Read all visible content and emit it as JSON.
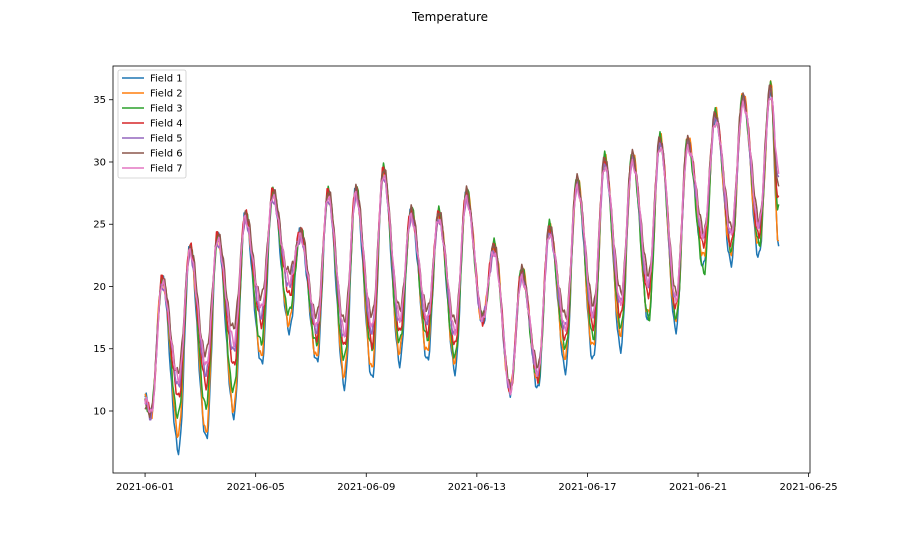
{
  "chart_data": {
    "type": "line",
    "title": "Temperature",
    "xlabel": "",
    "ylabel": "",
    "x_start": "2021-06-01 00:00",
    "x_end_days": 22.9,
    "xlim_days": [
      -1.16,
      24.05
    ],
    "ylim": [
      5.02,
      37.71
    ],
    "xticks": [
      {
        "day": 0,
        "label": "2021-06-01"
      },
      {
        "day": 4,
        "label": "2021-06-05"
      },
      {
        "day": 8,
        "label": "2021-06-09"
      },
      {
        "day": 12,
        "label": "2021-06-13"
      },
      {
        "day": 16,
        "label": "2021-06-17"
      },
      {
        "day": 20,
        "label": "2021-06-21"
      },
      {
        "day": 24,
        "label": "2021-06-25"
      }
    ],
    "yticks": [
      10,
      15,
      20,
      25,
      30,
      35
    ],
    "grid": false,
    "legend_position": "top-left",
    "daily_max": [
      20.5,
      23,
      24,
      25.7,
      27.5,
      24.3,
      27.5,
      27.7,
      29.3,
      26,
      25.8,
      27.5,
      23.2,
      21.2,
      24.7,
      28.5,
      30.2,
      30.5,
      31.8,
      31.7,
      33.8,
      35.2,
      36
    ],
    "series": [
      {
        "name": "Field 1",
        "color": "#1f77b4",
        "start": 11.1,
        "end": 23.4,
        "max_offset": 0.0,
        "daily_min": [
          9.7,
          6.7,
          7.7,
          9.6,
          13.8,
          16.5,
          14,
          12.1,
          12.7,
          14,
          14.2,
          13.4,
          17.2,
          11.7,
          12,
          13.5,
          14.3,
          15.2,
          17.5,
          16.7,
          21.8,
          22,
          22.5
        ]
      },
      {
        "name": "Field 2",
        "color": "#ff7f0e",
        "start": 10.9,
        "end": 24.0,
        "max_offset": 0.2,
        "daily_min": [
          9.7,
          8.3,
          8.5,
          10.3,
          14.6,
          17.2,
          14.5,
          13,
          13.5,
          14.8,
          14.8,
          14,
          17.3,
          11.7,
          12.6,
          14.2,
          15,
          16,
          17.6,
          17.2,
          22.2,
          22.5,
          23
        ]
      },
      {
        "name": "Field 3",
        "color": "#2ca02c",
        "start": 10.9,
        "end": 26.3,
        "max_offset": 0.1,
        "daily_min": [
          9.7,
          9.5,
          10.2,
          11.5,
          15.3,
          17.7,
          15.2,
          14,
          14.8,
          15.4,
          15.6,
          14.2,
          17.3,
          11.7,
          12.3,
          15,
          15.8,
          16.7,
          17.4,
          17.5,
          21.2,
          23,
          23.5
        ]
      },
      {
        "name": "Field 4",
        "color": "#d62728",
        "start": 10.8,
        "end": 26.8,
        "max_offset": 0.1,
        "daily_min": [
          9.7,
          11,
          12,
          13.6,
          17,
          19.4,
          16,
          15.3,
          15.5,
          16.5,
          16.5,
          15.5,
          17.4,
          11.8,
          12.8,
          16,
          17,
          17.8,
          19.5,
          18.5,
          23.5,
          23.5,
          24.2
        ]
      },
      {
        "name": "Field 5",
        "color": "#9467bd",
        "start": 10.8,
        "end": 28.8,
        "max_offset": -0.3,
        "daily_min": [
          9.7,
          12.2,
          13.2,
          15,
          17.8,
          20.2,
          16.6,
          16,
          16.5,
          17.2,
          17.2,
          16.2,
          17.4,
          11.8,
          13,
          16.6,
          17.6,
          18.5,
          20,
          18.8,
          24,
          24,
          24.8
        ]
      },
      {
        "name": "Field 6",
        "color": "#8c564b",
        "start": 10.7,
        "end": 28.0,
        "max_offset": 0.0,
        "daily_min": [
          9.7,
          13,
          14.5,
          16.5,
          19,
          21,
          17.5,
          17,
          17.5,
          18,
          18,
          17,
          17.5,
          11.8,
          13.5,
          17.5,
          18.5,
          19.5,
          21,
          19.5,
          24.5,
          24.8,
          25.5
        ]
      },
      {
        "name": "Field 7",
        "color": "#e377c2",
        "start": 10.8,
        "end": 29.2,
        "max_offset": -0.4,
        "daily_min": [
          9.7,
          12.5,
          13.6,
          15.5,
          18.3,
          20.5,
          16.9,
          16.4,
          16.9,
          17.6,
          17.6,
          16.6,
          17.5,
          11.8,
          13.2,
          16.9,
          17.9,
          18.9,
          20.4,
          19.1,
          24.2,
          24.4,
          25
        ]
      }
    ]
  }
}
